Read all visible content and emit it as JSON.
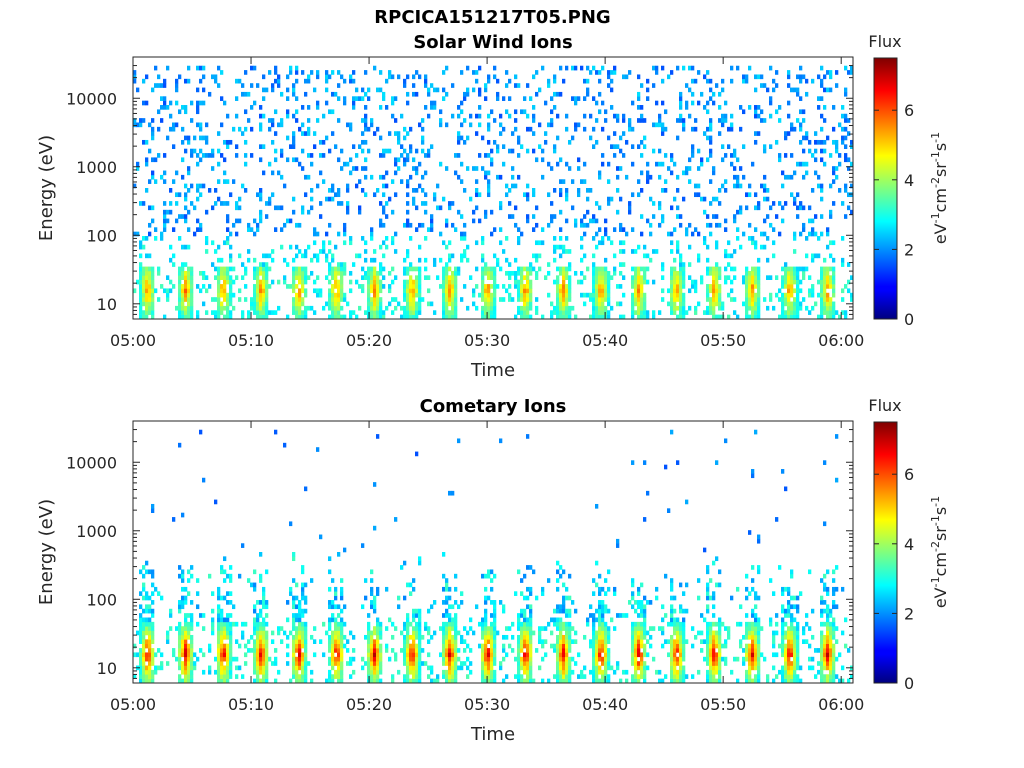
{
  "figure": {
    "title": "RPCICA151217T05.PNG"
  },
  "chart_data": [
    {
      "type": "heatmap",
      "title": "Solar Wind Ions",
      "xlabel": "Time",
      "ylabel": "Energy (eV)",
      "x_ticks": [
        "05:00",
        "05:10",
        "05:20",
        "05:30",
        "05:40",
        "05:50",
        "06:00"
      ],
      "x_range": [
        "05:00",
        "06:01"
      ],
      "y_scale": "log",
      "y_ticks": [
        "10",
        "100",
        "1000",
        "10000"
      ],
      "y_range": [
        6,
        40000
      ],
      "colorbar": {
        "title": "Flux",
        "label": "eV-1cm-2sr-1s-1",
        "ticks": [
          "0",
          "2",
          "4",
          "6"
        ],
        "range": [
          0,
          7.5
        ],
        "colormap": "jet"
      },
      "grid": false,
      "pattern": {
        "burst_period_min": 3.2,
        "burst_energy_range_eV": [
          6,
          35
        ],
        "burst_peak_flux": 5.8,
        "sparse_counts_energy_range_eV": [
          100,
          30000
        ],
        "sparse_counts_flux": [
          1.5,
          2.6
        ]
      }
    },
    {
      "type": "heatmap",
      "title": "Cometary Ions",
      "xlabel": "Time",
      "ylabel": "Energy (eV)",
      "x_ticks": [
        "05:00",
        "05:10",
        "05:20",
        "05:30",
        "05:40",
        "05:50",
        "06:00"
      ],
      "x_range": [
        "05:00",
        "06:01"
      ],
      "y_scale": "log",
      "y_ticks": [
        "10",
        "100",
        "1000",
        "10000"
      ],
      "y_range": [
        6,
        40000
      ],
      "colorbar": {
        "title": "Flux",
        "label": "eV-1cm-2sr-1s-1",
        "ticks": [
          "0",
          "2",
          "4",
          "6"
        ],
        "range": [
          0,
          7.5
        ],
        "colormap": "jet"
      },
      "grid": false,
      "pattern": {
        "burst_period_min": 3.2,
        "burst_energy_range_eV": [
          6,
          45
        ],
        "burst_peak_flux": 7.0,
        "plume_energy_range_eV": [
          45,
          500
        ],
        "sparse_counts_energy_range_eV": [
          500,
          30000
        ],
        "sparse_counts_flux": [
          1.5,
          2.2
        ]
      }
    }
  ],
  "colors": {
    "background": "#ffffff",
    "axis": "#262626"
  }
}
